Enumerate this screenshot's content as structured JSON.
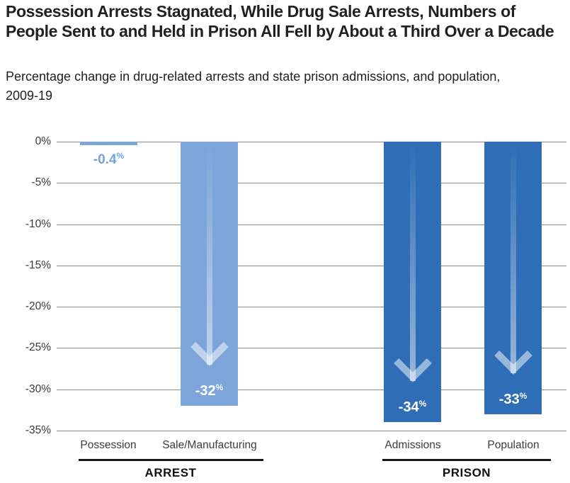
{
  "header": {
    "title": "Possession Arrests Stagnated, While Drug Sale Arrests, Numbers of People Sent to and Held in Prison All Fell by About a Third Over a Decade",
    "subtitle": "Percentage change in drug-related arrests and state prison admissions, and population, 2009-19"
  },
  "chart_data": {
    "type": "bar",
    "title": "Possession Arrests Stagnated, While Drug Sale Arrests, Numbers of People Sent to and Held in Prison All Fell by About a Third Over a Decade",
    "subtitle": "Percentage change in drug-related arrests and state prison admissions, and population, 2009-19",
    "categories": [
      "Possession",
      "Sale/Manufacturing",
      "Admissions",
      "Population"
    ],
    "values": [
      -0.4,
      -32,
      -34,
      -33
    ],
    "ylim": [
      -35,
      0
    ],
    "grid": true,
    "yticks": [
      {
        "label": "0%",
        "value": 0
      },
      {
        "label": "-5%",
        "value": -5
      },
      {
        "label": "-10%",
        "value": -10
      },
      {
        "label": "-15%",
        "value": -15
      },
      {
        "label": "-20%",
        "value": -20
      },
      {
        "label": "-25%",
        "value": -25
      },
      {
        "label": "-30%",
        "value": -30
      },
      {
        "label": "-35%",
        "value": -35
      }
    ],
    "bars": [
      {
        "category": "Possession",
        "group": "ARREST",
        "value": -0.4,
        "label": "-0.4",
        "suffix": "%",
        "shade": "light",
        "arrow": false
      },
      {
        "category": "Sale/Manufacturing",
        "group": "ARREST",
        "value": -32,
        "label": "-32",
        "suffix": "%",
        "shade": "light",
        "arrow": true
      },
      {
        "category": "Admissions",
        "group": "PRISON",
        "value": -34,
        "label": "-34",
        "suffix": "%",
        "shade": "dark",
        "arrow": true
      },
      {
        "category": "Population",
        "group": "PRISON",
        "value": -33,
        "label": "-33",
        "suffix": "%",
        "shade": "dark",
        "arrow": true
      }
    ],
    "groups": [
      {
        "label": "ARREST"
      },
      {
        "label": "PRISON"
      }
    ],
    "colors": {
      "light": "#7DA5D9",
      "dark": "#2F6EB6",
      "arrow": "rgba(255,255,255,0.5)",
      "grid": "#8c8c8c",
      "value_label_inside": "#FFFFFF",
      "value_label_outside": "#6FA3DB"
    }
  }
}
